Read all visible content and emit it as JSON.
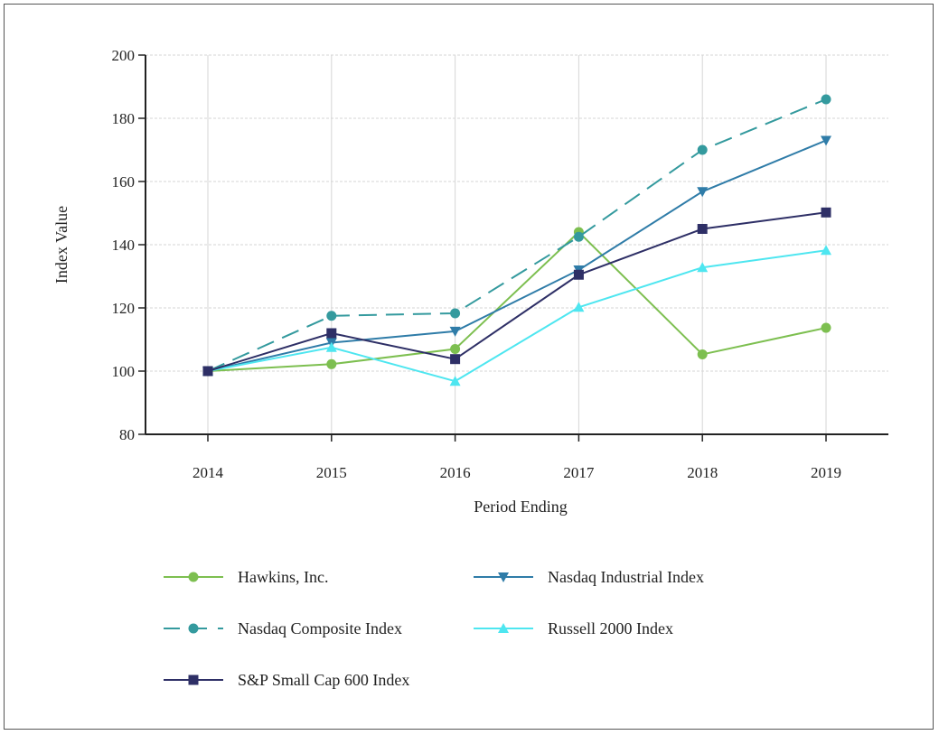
{
  "chart_data": {
    "type": "line",
    "xlabel": "Period Ending",
    "ylabel": "Index Value",
    "categories": [
      "2014",
      "2015",
      "2016",
      "2017",
      "2018",
      "2019"
    ],
    "ylim": [
      80,
      200
    ],
    "yticks": [
      80,
      100,
      120,
      140,
      160,
      180,
      200
    ],
    "grid": true,
    "legend_position": "bottom",
    "series": [
      {
        "name": "Hawkins, Inc.",
        "values": [
          100,
          102.2,
          107,
          144,
          105.3,
          113.7
        ],
        "color": "#7dbf50",
        "marker": "circle",
        "dash": "solid"
      },
      {
        "name": "Nasdaq Industrial Index",
        "values": [
          100,
          109,
          112.6,
          132,
          156.8,
          173
        ],
        "color": "#2f7ca8",
        "marker": "triangle-down",
        "dash": "solid"
      },
      {
        "name": "Nasdaq Composite Index",
        "values": [
          100,
          117.5,
          118.3,
          142.5,
          170,
          186
        ],
        "color": "#349a9e",
        "marker": "circle",
        "dash": "dashed"
      },
      {
        "name": "Russell 2000 Index",
        "values": [
          100,
          107.5,
          96.8,
          120.2,
          132.8,
          138.2
        ],
        "color": "#4ee6f0",
        "marker": "triangle-up",
        "dash": "solid"
      },
      {
        "name": "S&P Small Cap 600 Index",
        "values": [
          100,
          112,
          103.8,
          130.5,
          145,
          150.2
        ],
        "color": "#2e2f66",
        "marker": "square",
        "dash": "solid"
      }
    ]
  }
}
